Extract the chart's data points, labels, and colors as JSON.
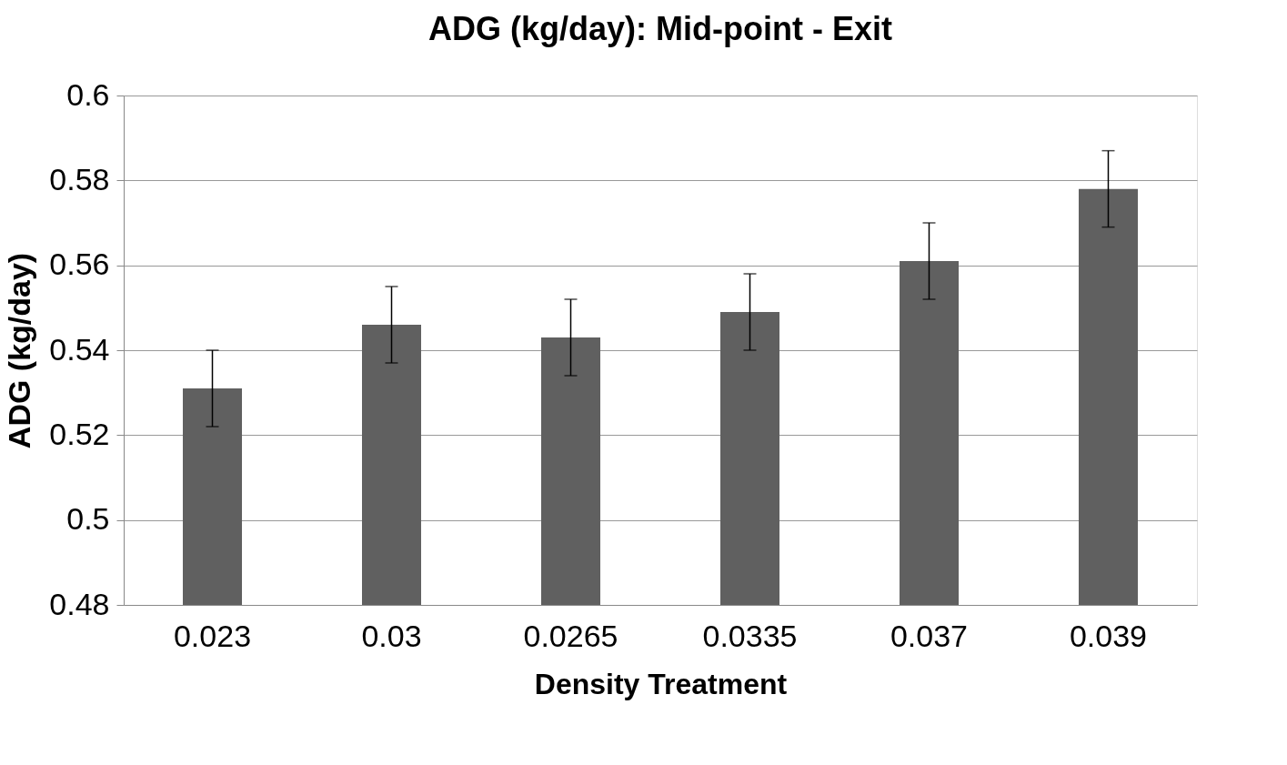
{
  "chart_data": {
    "type": "bar",
    "title": "ADG (kg/day): Mid-point - Exit",
    "xlabel": "Density Treatment",
    "ylabel": "ADG (kg/day)",
    "categories": [
      "0.023",
      "0.03",
      "0.0265",
      "0.0335",
      "0.037",
      "0.039"
    ],
    "values": [
      0.531,
      0.546,
      0.543,
      0.549,
      0.561,
      0.578
    ],
    "errors": [
      0.009,
      0.009,
      0.009,
      0.009,
      0.009,
      0.009
    ],
    "color": "#606060",
    "ylim": [
      0.48,
      0.6
    ],
    "yticks": [
      0.48,
      {
        "value": 0.5,
        "label": "0.5"
      },
      0.52,
      0.54,
      0.56,
      0.58,
      {
        "value": 0.6,
        "label": "0.6"
      }
    ],
    "grid": "y"
  }
}
